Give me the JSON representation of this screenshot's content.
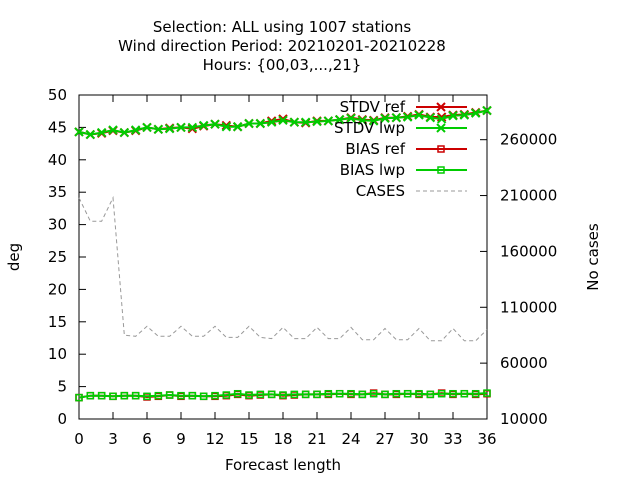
{
  "chart_data": {
    "type": "line",
    "title_lines": [
      "Selection: ALL using  1007 stations",
      "Wind direction   Period: 20210201-20210228",
      "Hours: {00,03,...,21}"
    ],
    "xlabel": "Forecast length",
    "ylabel": "deg",
    "y2label": "No cases",
    "xlim": [
      0,
      36
    ],
    "ylim": [
      0,
      50
    ],
    "y2lim": [
      10000,
      300000
    ],
    "xticks": [
      0,
      3,
      6,
      9,
      12,
      15,
      18,
      21,
      24,
      27,
      30,
      33,
      36
    ],
    "yticks": [
      0,
      5,
      10,
      15,
      20,
      25,
      30,
      35,
      40,
      45,
      50
    ],
    "y2ticks": [
      10000,
      60000,
      110000,
      160000,
      210000,
      260000
    ],
    "grid": false,
    "legend_position": "top-right",
    "x": [
      0,
      1,
      2,
      3,
      4,
      5,
      6,
      7,
      8,
      9,
      10,
      11,
      12,
      13,
      14,
      15,
      16,
      17,
      18,
      19,
      20,
      21,
      22,
      23,
      24,
      25,
      26,
      27,
      28,
      29,
      30,
      31,
      32,
      33,
      34,
      35,
      36
    ],
    "series": [
      {
        "name": "STDV ref",
        "color": "#cc0000",
        "marker": "x",
        "dashed": false,
        "axis": "y",
        "values": [
          44.3,
          43.9,
          44.1,
          44.5,
          44.2,
          44.5,
          45.0,
          44.7,
          44.9,
          45.0,
          44.8,
          45.2,
          45.5,
          45.3,
          45.1,
          45.6,
          45.6,
          46.0,
          46.3,
          45.8,
          45.7,
          46.0,
          46.0,
          46.2,
          46.5,
          46.2,
          46.1,
          46.5,
          46.5,
          46.7,
          47.0,
          46.6,
          46.6,
          46.9,
          47.0,
          47.3,
          47.6
        ]
      },
      {
        "name": "STDV lwp",
        "color": "#00cc00",
        "marker": "x",
        "dashed": false,
        "axis": "y",
        "values": [
          44.3,
          43.9,
          44.2,
          44.6,
          44.2,
          44.6,
          45.0,
          44.7,
          44.8,
          45.0,
          45.0,
          45.3,
          45.5,
          45.1,
          45.1,
          45.6,
          45.6,
          45.8,
          46.1,
          45.8,
          45.8,
          45.9,
          46.0,
          46.2,
          46.4,
          46.1,
          46.0,
          46.4,
          46.5,
          46.6,
          46.9,
          46.5,
          46.3,
          46.8,
          46.9,
          47.2,
          47.6
        ]
      },
      {
        "name": "BIAS ref",
        "color": "#cc0000",
        "marker": "square",
        "dashed": false,
        "axis": "y",
        "values": [
          3.3,
          3.6,
          3.6,
          3.5,
          3.6,
          3.6,
          3.4,
          3.5,
          3.7,
          3.5,
          3.6,
          3.5,
          3.5,
          3.6,
          3.8,
          3.6,
          3.7,
          3.8,
          3.6,
          3.7,
          3.8,
          3.8,
          3.8,
          3.9,
          3.8,
          3.8,
          4.0,
          3.8,
          3.8,
          3.9,
          3.8,
          3.8,
          4.0,
          3.8,
          3.9,
          3.8,
          3.9
        ]
      },
      {
        "name": "BIAS lwp",
        "color": "#00cc00",
        "marker": "square",
        "dashed": false,
        "axis": "y",
        "values": [
          3.3,
          3.6,
          3.6,
          3.5,
          3.6,
          3.6,
          3.5,
          3.6,
          3.7,
          3.6,
          3.6,
          3.5,
          3.6,
          3.7,
          3.9,
          3.7,
          3.8,
          3.8,
          3.7,
          3.8,
          3.8,
          3.8,
          3.9,
          3.9,
          3.9,
          3.8,
          3.9,
          3.8,
          3.9,
          3.9,
          3.9,
          3.8,
          3.9,
          3.9,
          3.9,
          3.9,
          4.0
        ]
      },
      {
        "name": "CASES",
        "color": "#999999",
        "marker": "none",
        "dashed": true,
        "axis": "y2",
        "values": [
          208000,
          187000,
          187000,
          208000,
          85000,
          84000,
          93000,
          84000,
          84000,
          93000,
          84000,
          84000,
          93000,
          83000,
          83000,
          93000,
          83000,
          82000,
          92000,
          82000,
          82000,
          92000,
          82000,
          82000,
          92000,
          81000,
          81000,
          91000,
          81000,
          81000,
          91000,
          80000,
          80000,
          91000,
          80000,
          80000,
          90000
        ]
      }
    ]
  }
}
